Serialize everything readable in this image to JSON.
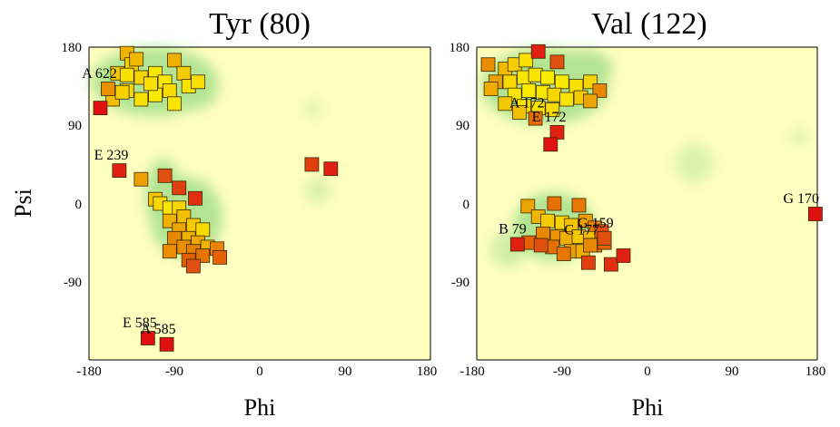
{
  "chart_data": [
    {
      "type": "scatter",
      "title": "Tyr (80)",
      "xlabel": "Phi",
      "ylabel": "Psi",
      "xlim": [
        -180,
        180
      ],
      "ylim": [
        -180,
        180
      ],
      "xticks": [
        "-180",
        "-90",
        "0",
        "90",
        "180"
      ],
      "yticks": [
        "180",
        "90",
        "0",
        "-90"
      ],
      "background": "#ffffc0",
      "favored_color": "#9be07a",
      "points": [
        {
          "x": -140,
          "y": 173,
          "c": "#f0b400"
        },
        {
          "x": -135,
          "y": 160,
          "c": "#f5d000"
        },
        {
          "x": -150,
          "y": 150,
          "c": "#f4c800"
        },
        {
          "x": -140,
          "y": 148,
          "c": "#f8e000"
        },
        {
          "x": -130,
          "y": 166,
          "c": "#f0b800"
        },
        {
          "x": -125,
          "y": 145,
          "c": "#f6d400"
        },
        {
          "x": -110,
          "y": 150,
          "c": "#f9e600"
        },
        {
          "x": -100,
          "y": 140,
          "c": "#f9e800"
        },
        {
          "x": -90,
          "y": 165,
          "c": "#f0b000"
        },
        {
          "x": -80,
          "y": 150,
          "c": "#f5cc00"
        },
        {
          "x": -75,
          "y": 135,
          "c": "#f9e400"
        },
        {
          "x": -65,
          "y": 140,
          "c": "#f8de00"
        },
        {
          "x": -140,
          "y": 130,
          "c": "#f7d800"
        },
        {
          "x": -125,
          "y": 120,
          "c": "#f8e000"
        },
        {
          "x": -110,
          "y": 125,
          "c": "#f9ea00"
        },
        {
          "x": -95,
          "y": 130,
          "c": "#f8dc00"
        },
        {
          "x": -90,
          "y": 115,
          "c": "#f9e400"
        },
        {
          "x": -155,
          "y": 120,
          "c": "#f2bc00"
        },
        {
          "x": -145,
          "y": 128,
          "c": "#f6d000"
        },
        {
          "x": -115,
          "y": 138,
          "c": "#f8e000"
        },
        {
          "x": -160,
          "y": 132,
          "c": "#e89000",
          "label": "A 622"
        },
        {
          "x": -168,
          "y": 110,
          "c": "#e01010"
        },
        {
          "x": -148,
          "y": 38,
          "c": "#e02010",
          "label": "E 239"
        },
        {
          "x": -125,
          "y": 28,
          "c": "#eca000"
        },
        {
          "x": -100,
          "y": 32,
          "c": "#e05010"
        },
        {
          "x": -85,
          "y": 18,
          "c": "#e04010"
        },
        {
          "x": -68,
          "y": 6,
          "c": "#e03010"
        },
        {
          "x": -110,
          "y": 5,
          "c": "#f4c400"
        },
        {
          "x": -105,
          "y": 0,
          "c": "#f8d800"
        },
        {
          "x": -95,
          "y": -5,
          "c": "#f9e400"
        },
        {
          "x": -85,
          "y": -5,
          "c": "#f6d400"
        },
        {
          "x": -80,
          "y": -15,
          "c": "#f2c000"
        },
        {
          "x": -95,
          "y": -20,
          "c": "#f0b000"
        },
        {
          "x": -70,
          "y": -25,
          "c": "#f5c800"
        },
        {
          "x": -85,
          "y": -30,
          "c": "#eca400"
        },
        {
          "x": -60,
          "y": -30,
          "c": "#f8dc00"
        },
        {
          "x": -75,
          "y": -40,
          "c": "#f0b000"
        },
        {
          "x": -65,
          "y": -45,
          "c": "#eea800"
        },
        {
          "x": -90,
          "y": -40,
          "c": "#e88800"
        },
        {
          "x": -80,
          "y": -50,
          "c": "#e89000"
        },
        {
          "x": -55,
          "y": -50,
          "c": "#f0b400"
        },
        {
          "x": -70,
          "y": -55,
          "c": "#e78000"
        },
        {
          "x": -60,
          "y": -60,
          "c": "#e67400"
        },
        {
          "x": -45,
          "y": -52,
          "c": "#e88400"
        },
        {
          "x": -95,
          "y": -55,
          "c": "#ea9000"
        },
        {
          "x": -75,
          "y": -65,
          "c": "#e45c00"
        },
        {
          "x": -42,
          "y": -62,
          "c": "#e46000"
        },
        {
          "x": -70,
          "y": -72,
          "c": "#e05010"
        },
        {
          "x": 55,
          "y": 45,
          "c": "#e04010"
        },
        {
          "x": 75,
          "y": 40,
          "c": "#e02010"
        },
        {
          "x": -118,
          "y": -155,
          "c": "#e01010",
          "label": "E 585"
        },
        {
          "x": -98,
          "y": -162,
          "c": "#e01010",
          "label": "A 585"
        }
      ]
    },
    {
      "type": "scatter",
      "title": "Val (122)",
      "xlabel": "Phi",
      "ylabel": "",
      "xlim": [
        -180,
        180
      ],
      "ylim": [
        -180,
        180
      ],
      "xticks": [
        "-180",
        "-90",
        "0",
        "90",
        "180"
      ],
      "yticks": [
        "180",
        "90",
        "0",
        "-90"
      ],
      "background": "#ffffc0",
      "favored_color": "#9be07a",
      "points": [
        {
          "x": -168,
          "y": 160,
          "c": "#e88c00"
        },
        {
          "x": -150,
          "y": 155,
          "c": "#f2bc00"
        },
        {
          "x": -140,
          "y": 160,
          "c": "#f5cc00"
        },
        {
          "x": -128,
          "y": 165,
          "c": "#f9e000"
        },
        {
          "x": -115,
          "y": 175,
          "c": "#e02010"
        },
        {
          "x": -95,
          "y": 163,
          "c": "#e05010"
        },
        {
          "x": -160,
          "y": 140,
          "c": "#eca000"
        },
        {
          "x": -145,
          "y": 140,
          "c": "#f7d800"
        },
        {
          "x": -130,
          "y": 145,
          "c": "#f9e600"
        },
        {
          "x": -118,
          "y": 148,
          "c": "#f8e400"
        },
        {
          "x": -105,
          "y": 145,
          "c": "#f9ec00"
        },
        {
          "x": -90,
          "y": 140,
          "c": "#f9e800"
        },
        {
          "x": -75,
          "y": 135,
          "c": "#f8e000"
        },
        {
          "x": -60,
          "y": 140,
          "c": "#f6d400"
        },
        {
          "x": -50,
          "y": 130,
          "c": "#e88800"
        },
        {
          "x": -165,
          "y": 132,
          "c": "#f0ac00"
        },
        {
          "x": -140,
          "y": 125,
          "c": "#f9e400"
        },
        {
          "x": -125,
          "y": 130,
          "c": "#f9ea00"
        },
        {
          "x": -110,
          "y": 128,
          "c": "#f9e600"
        },
        {
          "x": -98,
          "y": 125,
          "c": "#f6d800"
        },
        {
          "x": -85,
          "y": 120,
          "c": "#f9e400"
        },
        {
          "x": -70,
          "y": 122,
          "c": "#f5cc00"
        },
        {
          "x": -60,
          "y": 118,
          "c": "#eca400"
        },
        {
          "x": -150,
          "y": 115,
          "c": "#f4c800"
        },
        {
          "x": -130,
          "y": 112,
          "c": "#f8e000"
        },
        {
          "x": -115,
          "y": 110,
          "c": "#f9e400"
        },
        {
          "x": -100,
          "y": 108,
          "c": "#f8dc00"
        },
        {
          "x": -135,
          "y": 105,
          "c": "#f3c000"
        },
        {
          "x": -118,
          "y": 98,
          "c": "#e86c00",
          "label": "A 172"
        },
        {
          "x": -95,
          "y": 82,
          "c": "#e02010",
          "label": "E 172"
        },
        {
          "x": -102,
          "y": 68,
          "c": "#e01010"
        },
        {
          "x": -126,
          "y": -3,
          "c": "#eea400"
        },
        {
          "x": -98,
          "y": 0,
          "c": "#e87000"
        },
        {
          "x": -72,
          "y": -2,
          "c": "#e87800"
        },
        {
          "x": -115,
          "y": -15,
          "c": "#f0b400"
        },
        {
          "x": -105,
          "y": -20,
          "c": "#f5cc00"
        },
        {
          "x": -90,
          "y": -22,
          "c": "#f6d400"
        },
        {
          "x": -80,
          "y": -25,
          "c": "#f4c400"
        },
        {
          "x": -65,
          "y": -20,
          "c": "#eea000"
        },
        {
          "x": -55,
          "y": -28,
          "c": "#e88000"
        },
        {
          "x": -110,
          "y": -35,
          "c": "#e88800"
        },
        {
          "x": -95,
          "y": -38,
          "c": "#ea9400"
        },
        {
          "x": -85,
          "y": -40,
          "c": "#f0b000"
        },
        {
          "x": -72,
          "y": -38,
          "c": "#f5c800"
        },
        {
          "x": -60,
          "y": -40,
          "c": "#f2bc00"
        },
        {
          "x": -48,
          "y": -32,
          "c": "#e05010"
        },
        {
          "x": -125,
          "y": -45,
          "c": "#e46000"
        },
        {
          "x": -100,
          "y": -50,
          "c": "#e67000"
        },
        {
          "x": -80,
          "y": -55,
          "c": "#eca000"
        },
        {
          "x": -68,
          "y": -55,
          "c": "#f0b000"
        },
        {
          "x": -55,
          "y": -48,
          "c": "#e88400"
        },
        {
          "x": -45,
          "y": -45,
          "c": "#e46400"
        },
        {
          "x": -88,
          "y": -58,
          "c": "#e67800"
        },
        {
          "x": -112,
          "y": -48,
          "c": "#e05010"
        },
        {
          "x": -62,
          "y": -68,
          "c": "#e04010"
        },
        {
          "x": -38,
          "y": -70,
          "c": "#e03010"
        },
        {
          "x": -25,
          "y": -60,
          "c": "#e02010"
        },
        {
          "x": -137,
          "y": -47,
          "c": "#e02010",
          "label": "B 79"
        },
        {
          "x": -45,
          "y": -40,
          "c": "#e05010",
          "label": "G 159"
        },
        {
          "x": -60,
          "y": -48,
          "c": "#e88800",
          "label": "C 177"
        },
        {
          "x": 178,
          "y": -12,
          "c": "#e01010",
          "label": "G 170"
        }
      ]
    }
  ]
}
